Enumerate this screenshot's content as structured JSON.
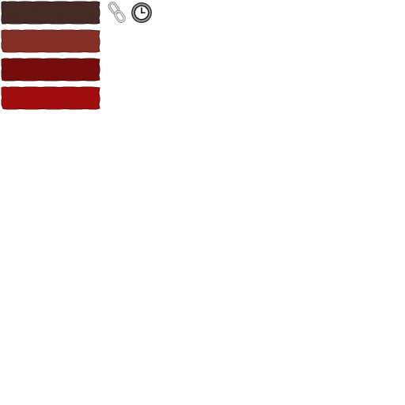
{
  "swatches": [
    {
      "name": "swatch-dark-brown",
      "color": "#4a2d27",
      "edge": "#2e1a16"
    },
    {
      "name": "swatch-rust-brown",
      "color": "#8a3229",
      "edge": "#5c1e18"
    },
    {
      "name": "swatch-dark-red",
      "color": "#7a1212",
      "edge": "#4e0b0b"
    },
    {
      "name": "swatch-red",
      "color": "#a70f0f",
      "edge": "#6e0a0a"
    }
  ],
  "icons": {
    "link": "link-icon",
    "clock": "clock-icon"
  }
}
